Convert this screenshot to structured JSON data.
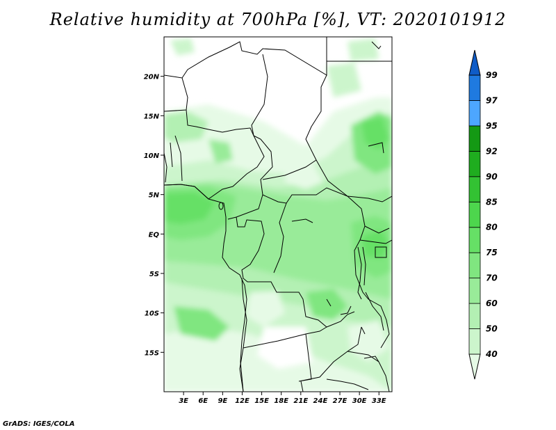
{
  "title": "Relative humidity at 700hPa [%], VT: 2020101912",
  "credit": "GrADS: IGES/COLA",
  "map": {
    "lon_range": [
      0,
      35
    ],
    "lat_range": [
      -20,
      25
    ],
    "lat_labels": [
      "20N",
      "15N",
      "10N",
      "5N",
      "EQ",
      "5S",
      "10S",
      "15S"
    ],
    "lon_labels": [
      "3E",
      "6E",
      "9E",
      "12E",
      "15E",
      "18E",
      "21E",
      "24E",
      "27E",
      "30E",
      "33E"
    ]
  },
  "colorbar": {
    "levels": [
      "40",
      "50",
      "60",
      "70",
      "75",
      "80",
      "85",
      "90",
      "92",
      "95",
      "97",
      "99"
    ],
    "colors": [
      "#e6fae6",
      "#ccf5cc",
      "#b3f0b3",
      "#99eb99",
      "#80e680",
      "#66e066",
      "#4dd64d",
      "#33c233",
      "#1fad1f",
      "#149914",
      "#4da6ff",
      "#1f7ae0",
      "#0f5cc7"
    ]
  }
}
